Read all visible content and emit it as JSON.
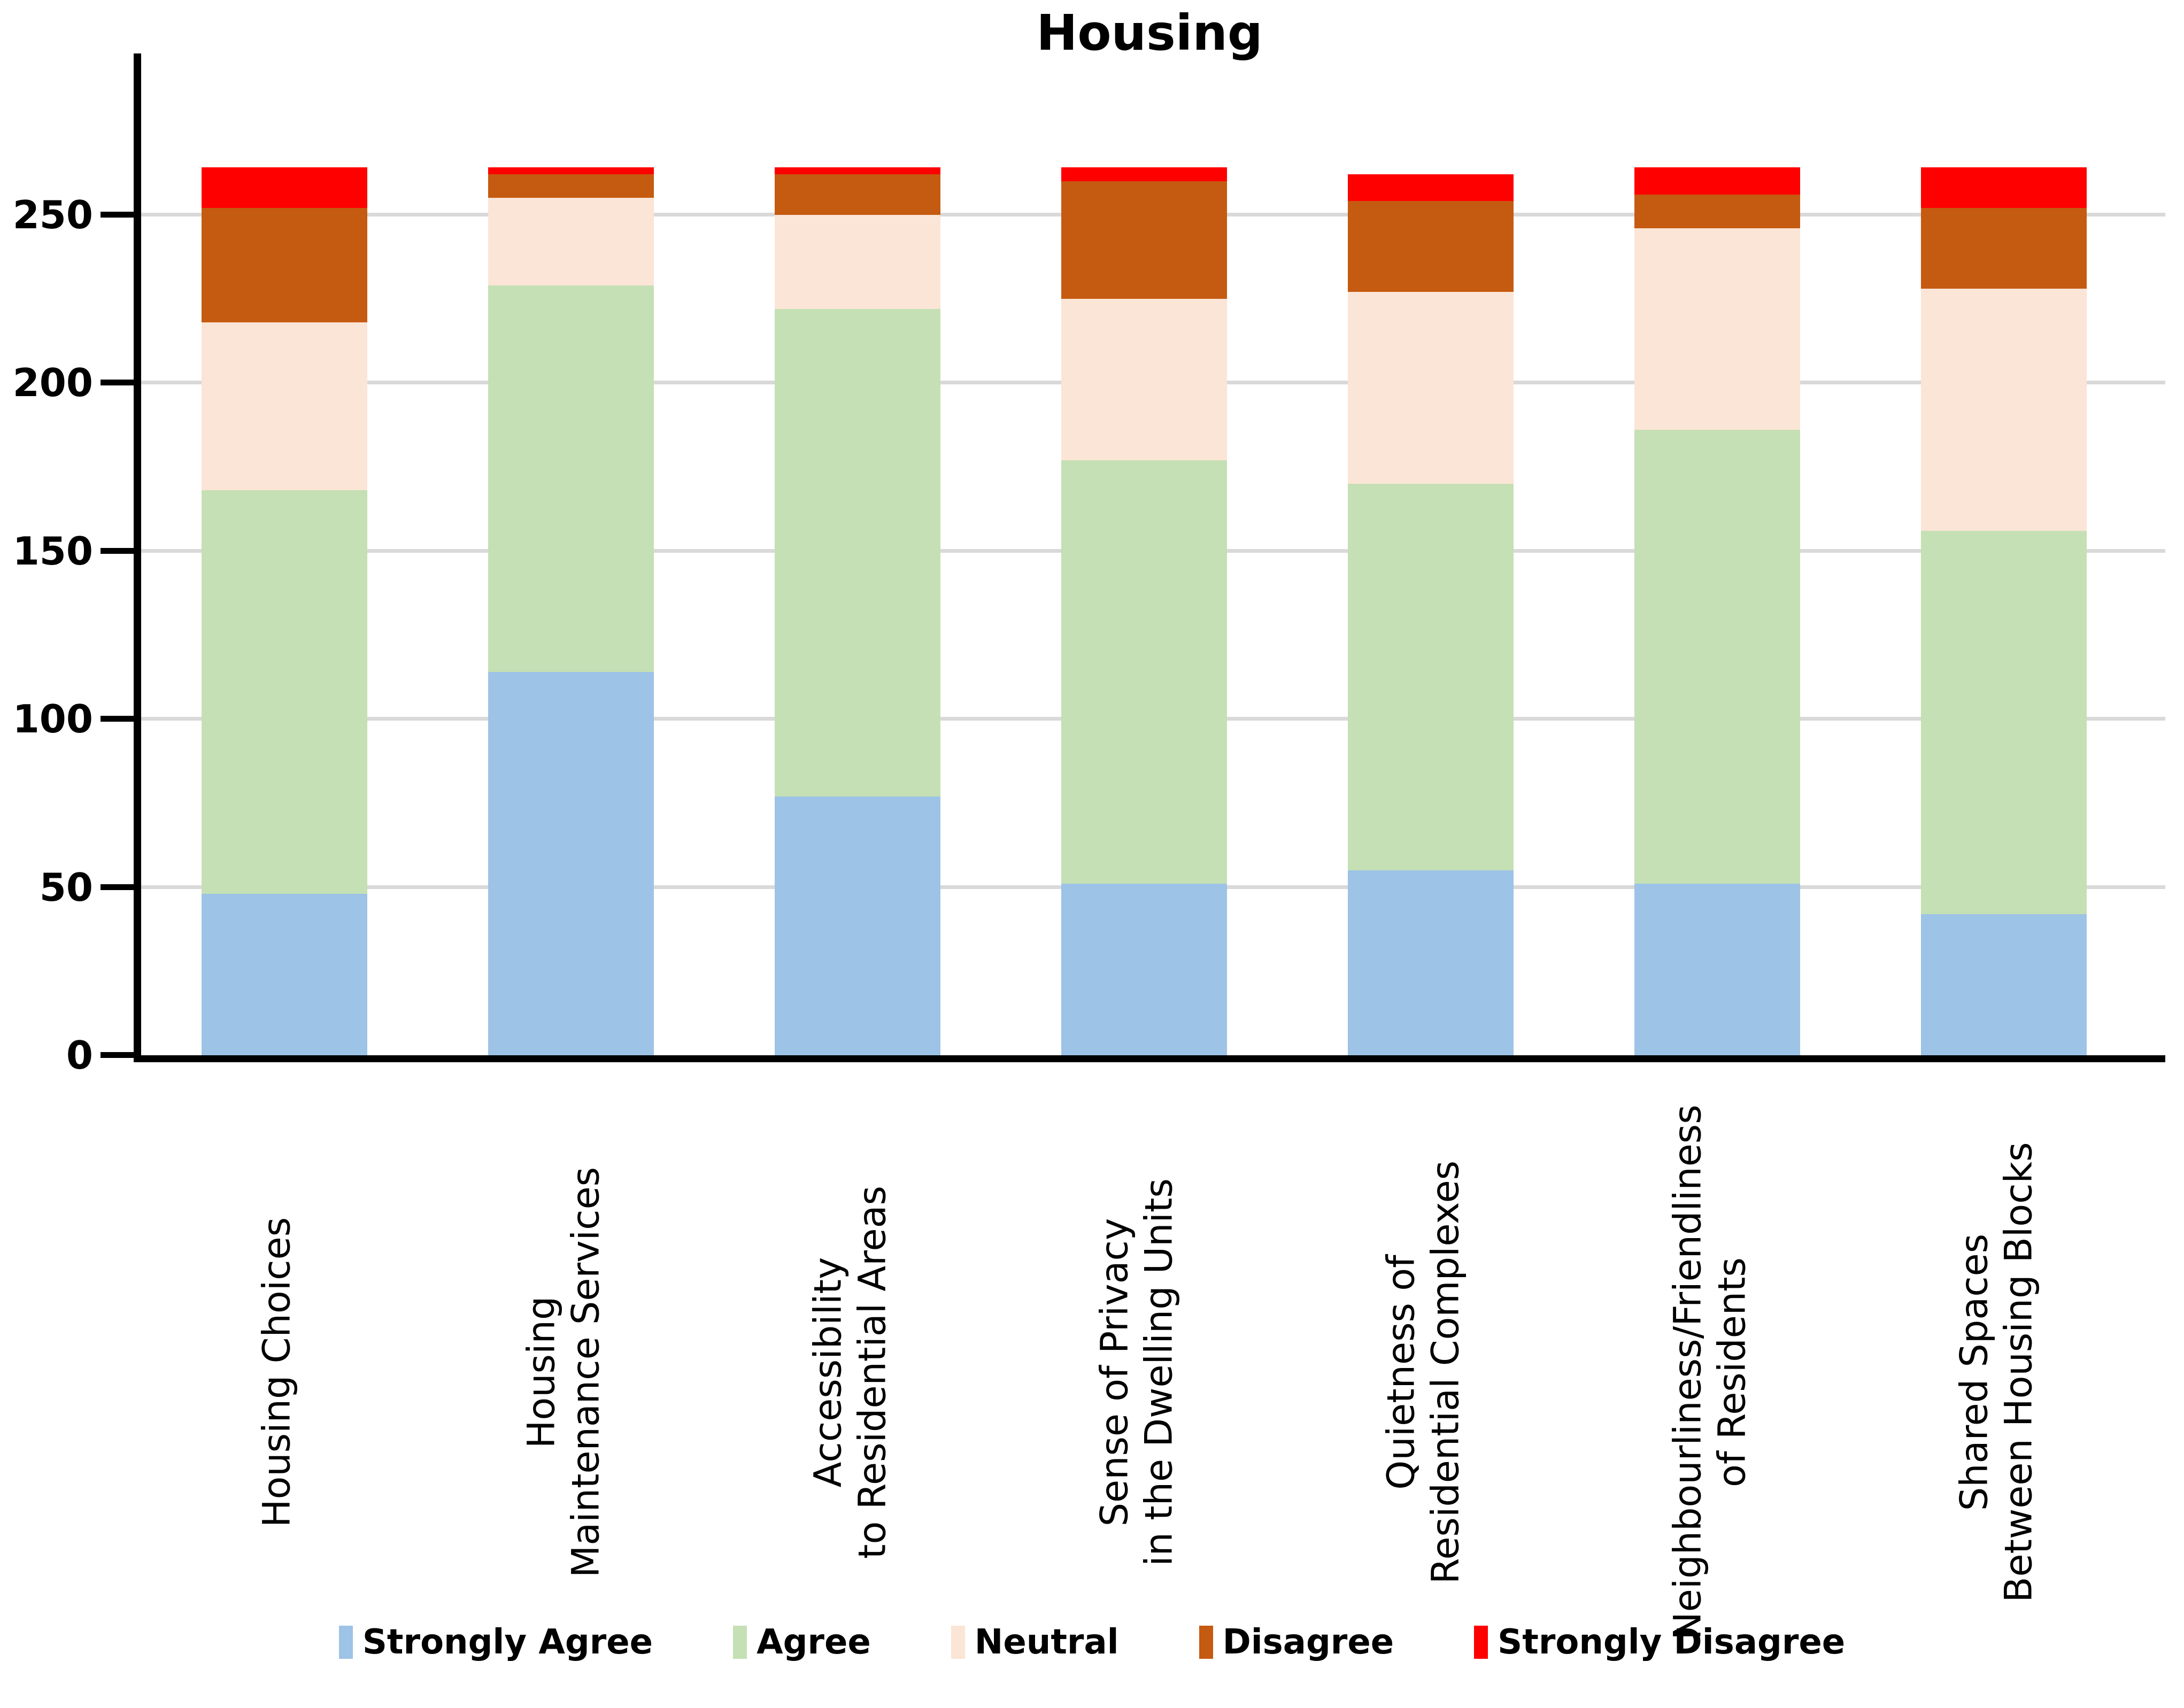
{
  "chart_data": {
    "type": "bar",
    "subtype": "stacked-vertical",
    "title": "Housing",
    "categories": [
      [
        "Housing Choices"
      ],
      [
        "Housing",
        "Maintenance Services"
      ],
      [
        "Accessibility",
        "to Residential Areas"
      ],
      [
        "Sense of Privacy",
        "in the Dwelling Units"
      ],
      [
        "Quietness of",
        "Residential Complexes"
      ],
      [
        "Neighbourliness/Friendliness",
        "of Residents"
      ],
      [
        "Shared Spaces",
        "Between Housing Blocks"
      ]
    ],
    "series": [
      {
        "name": "Strongly Agree",
        "color": "#9DC3E6",
        "values": [
          48,
          114,
          77,
          51,
          55,
          51,
          42
        ]
      },
      {
        "name": "Agree",
        "color": "#C5E0B4",
        "values": [
          120,
          115,
          145,
          126,
          115,
          135,
          114
        ]
      },
      {
        "name": "Neutral",
        "color": "#FBE5D6",
        "values": [
          50,
          26,
          28,
          48,
          57,
          60,
          72
        ]
      },
      {
        "name": "Disagree",
        "color": "#C55A11",
        "values": [
          34,
          7,
          12,
          35,
          27,
          10,
          24
        ]
      },
      {
        "name": "Strongly Disagree",
        "color": "#FF0000",
        "values": [
          12,
          2,
          2,
          4,
          8,
          8,
          12
        ]
      }
    ],
    "totals": [
      264,
      264,
      264,
      264,
      262,
      264,
      264
    ],
    "xlabel": "",
    "ylabel": "",
    "y_ticks": [
      0,
      50,
      100,
      150,
      200,
      250
    ],
    "ylim": [
      0,
      300
    ],
    "grid": true,
    "gridline_color": "#D9D9D9",
    "axis_color": "#000000",
    "legend_position": "bottom"
  }
}
